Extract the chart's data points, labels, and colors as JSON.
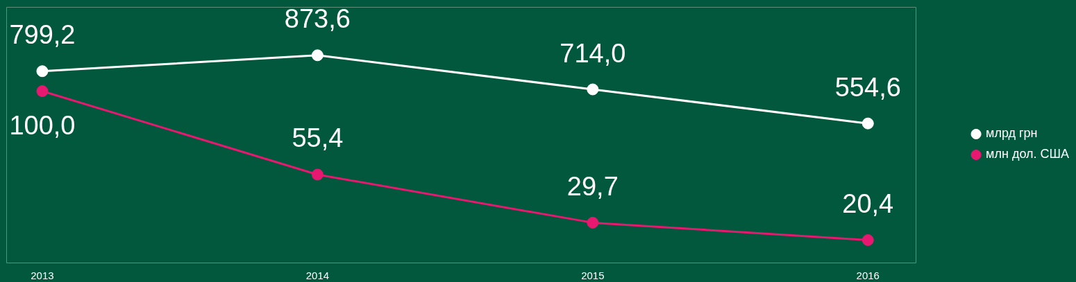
{
  "chart_data": {
    "type": "line",
    "categories": [
      "2013",
      "2014",
      "2015",
      "2016"
    ],
    "series": [
      {
        "name": "млрд грн",
        "color": "#ffffff",
        "values": [
          799.2,
          873.6,
          714.0,
          554.6
        ],
        "value_labels": [
          "799,2",
          "873,6",
          "714,0",
          "554,6"
        ]
      },
      {
        "name": "млн дол. США",
        "color": "#e6186f",
        "values": [
          100.0,
          55.4,
          29.7,
          20.4
        ],
        "value_labels": [
          "100,0",
          "55,4",
          "29,7",
          "20,4"
        ],
        "axis": "y2"
      }
    ],
    "ylim": [
      -100,
      1100
    ],
    "y2lim": [
      8,
      145
    ],
    "tick_labels": "x",
    "grid": false,
    "legend": "right",
    "marker": "circle",
    "line_style": "solid"
  }
}
